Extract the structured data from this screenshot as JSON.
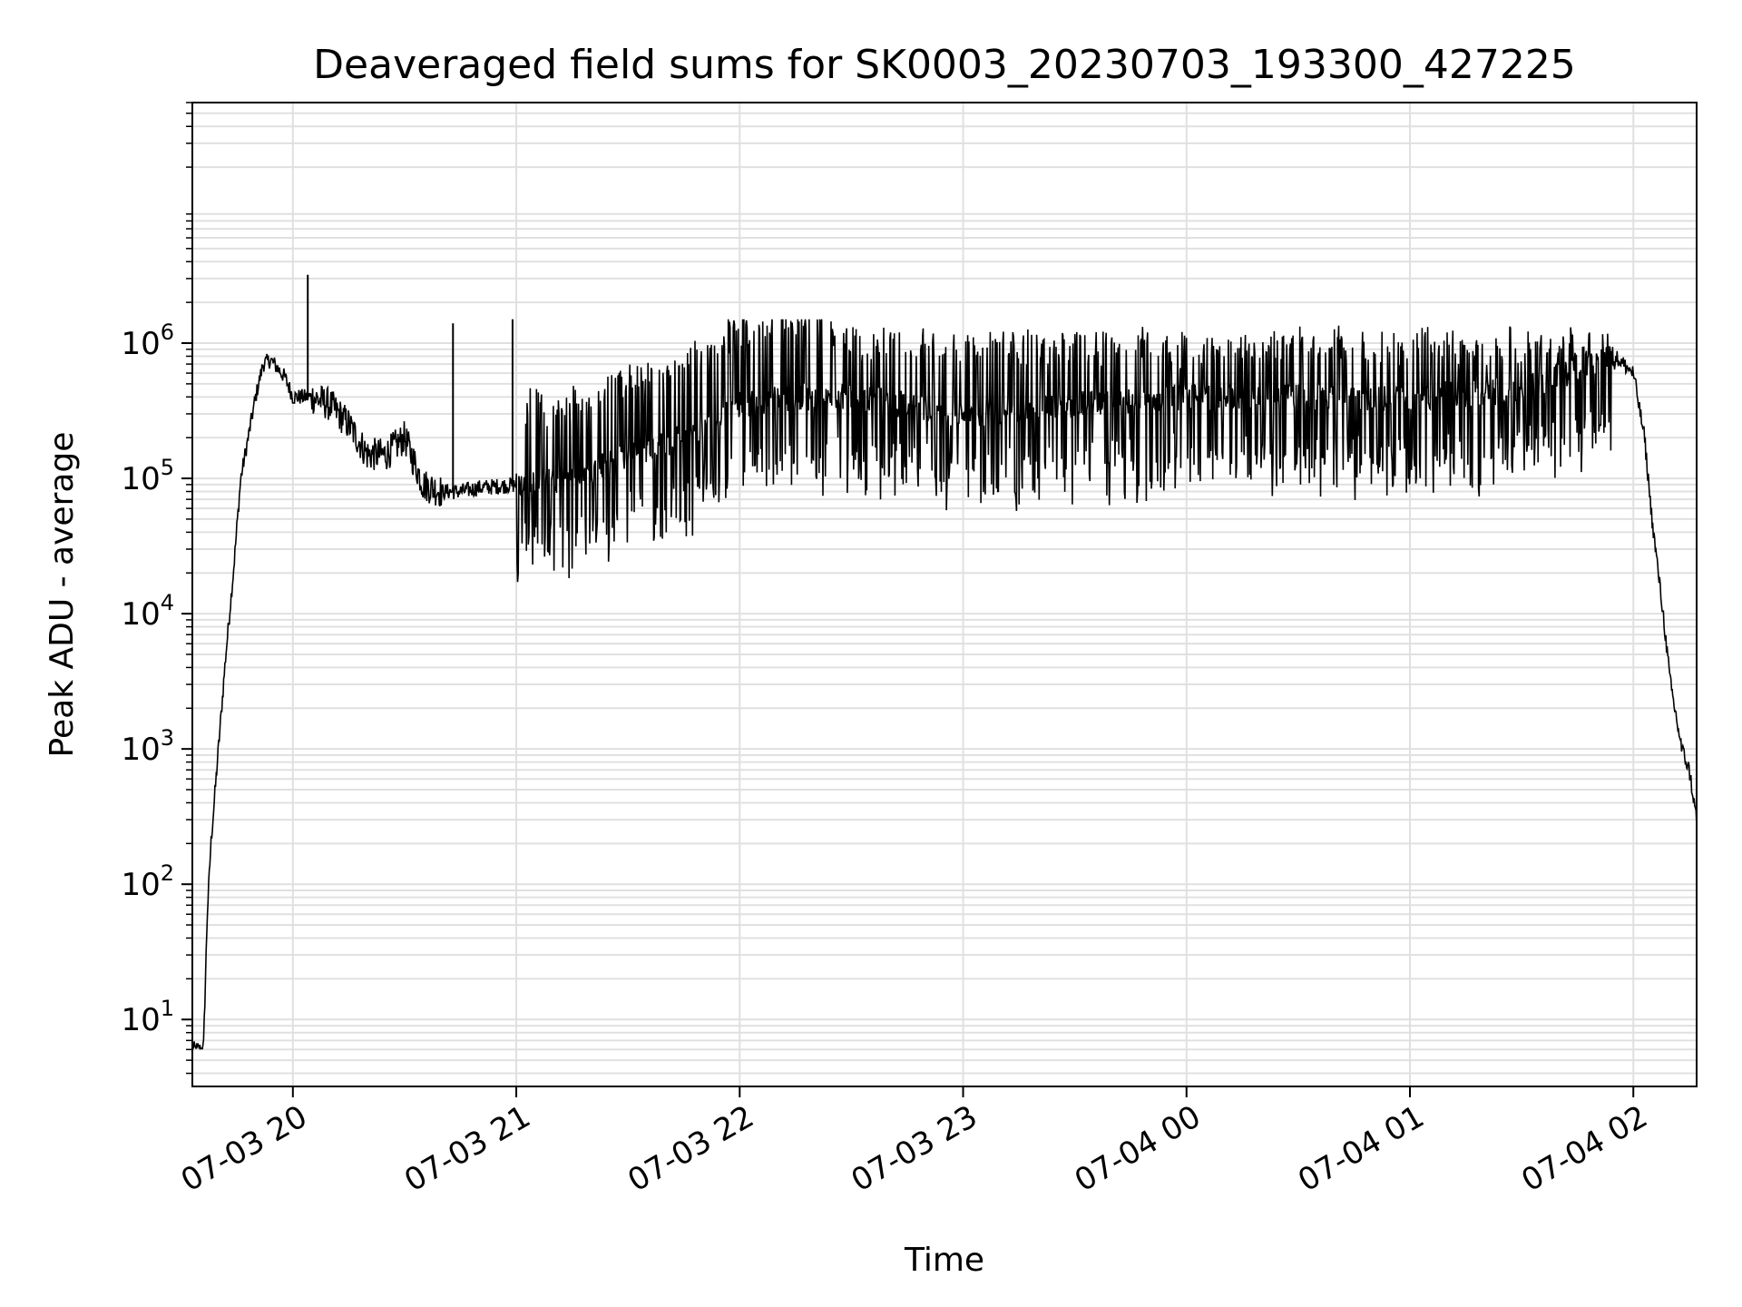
{
  "chart_data": {
    "type": "line",
    "title": "Deaveraged field sums for SK0003_20230703_193300_427225",
    "xlabel": "Time",
    "ylabel": "Peak ADU - average",
    "yscale": "log",
    "ylim": [
      3.2,
      60000000
    ],
    "xlim": [
      "07-03 19:33",
      "07-04 02:17"
    ],
    "grid": true,
    "x_ticks": [
      "07-03 20",
      "07-03 21",
      "07-03 22",
      "07-03 23",
      "07-04 00",
      "07-04 01",
      "07-04 02"
    ],
    "y_ticks": [
      {
        "base": "10",
        "exp": "1",
        "value": 10
      },
      {
        "base": "10",
        "exp": "2",
        "value": 100
      },
      {
        "base": "10",
        "exp": "3",
        "value": 1000
      },
      {
        "base": "10",
        "exp": "4",
        "value": 10000
      },
      {
        "base": "10",
        "exp": "5",
        "value": 100000
      },
      {
        "base": "10",
        "exp": "6",
        "value": 1000000
      }
    ],
    "line_color": "#000000",
    "grid_color": "#e0e0e0",
    "series": [
      {
        "x": [
          "07-03 19:33",
          "07-03 19:36",
          "07-03 19:37",
          "07-03 19:38",
          "07-03 19:40",
          "07-03 19:42",
          "07-03 19:44",
          "07-03 19:46",
          "07-03 19:48",
          "07-03 19:50",
          "07-03 19:52",
          "07-03 19:54",
          "07-03 19:56",
          "07-03 19:58",
          "07-03 20:00",
          "07-03 20:05",
          "07-03 20:10",
          "07-03 20:15",
          "07-03 20:20",
          "07-03 20:25",
          "07-03 20:30",
          "07-03 20:35",
          "07-03 20:40",
          "07-03 20:45",
          "07-03 20:50",
          "07-03 21:00",
          "07-03 21:15",
          "07-03 21:30",
          "07-03 21:45",
          "07-03 22:00",
          "07-03 22:15",
          "07-03 22:30",
          "07-03 22:45",
          "07-03 23:00",
          "07-03 23:30",
          "07-04 00:00",
          "07-04 00:30",
          "07-04 01:00",
          "07-04 01:30",
          "07-04 01:55",
          "07-04 02:00",
          "07-04 02:03",
          "07-04 02:05",
          "07-04 02:08",
          "07-04 02:10",
          "07-04 02:13",
          "07-04 02:15",
          "07-04 02:17"
        ],
        "values": [
          6,
          6,
          60,
          200,
          1000,
          5000,
          20000,
          100000,
          200000,
          400000,
          700000,
          750000,
          650000,
          550000,
          400000,
          400000,
          350000,
          250000,
          150000,
          150000,
          200000,
          90000,
          80000,
          80000,
          85000,
          90000,
          100000,
          150000,
          200000,
          350000,
          400000,
          400000,
          350000,
          300000,
          350000,
          400000,
          400000,
          400000,
          450000,
          800000,
          600000,
          200000,
          50000,
          10000,
          3000,
          1000,
          700,
          300
        ]
      }
    ],
    "spikes": [
      {
        "x": "07-03 20:04",
        "value": 3200000
      },
      {
        "x": "07-03 20:43",
        "value": 1400000
      },
      {
        "x": "07-03 20:59",
        "value": 1500000
      }
    ]
  }
}
